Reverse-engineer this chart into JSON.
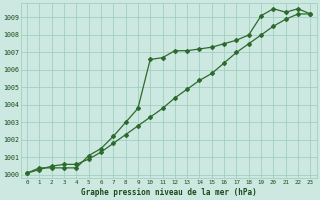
{
  "line1": [
    1000.1,
    1000.4,
    1000.4,
    1000.4,
    1000.4,
    1001.1,
    1001.5,
    1002.2,
    1003.0,
    1003.8,
    1006.6,
    1006.7,
    1007.1,
    1007.1,
    1007.2,
    1007.3,
    1007.5,
    1007.7,
    1008.0,
    1009.1,
    1009.5,
    1009.3,
    1009.5,
    1009.2
  ],
  "line2": [
    1000.1,
    1000.3,
    1000.5,
    1000.6,
    1000.6,
    1000.9,
    1001.3,
    1001.8,
    1002.3,
    1002.8,
    1003.3,
    1003.8,
    1004.4,
    1004.9,
    1005.4,
    1005.8,
    1006.4,
    1007.0,
    1007.5,
    1008.0,
    1008.5,
    1008.9,
    1009.2,
    1009.2
  ],
  "x": [
    0,
    1,
    2,
    3,
    4,
    5,
    6,
    7,
    8,
    9,
    10,
    11,
    12,
    13,
    14,
    15,
    16,
    17,
    18,
    19,
    20,
    21,
    22,
    23
  ],
  "xlim": [
    -0.5,
    23.5
  ],
  "ylim": [
    999.8,
    1009.8
  ],
  "yticks": [
    1000,
    1001,
    1002,
    1003,
    1004,
    1005,
    1006,
    1007,
    1008,
    1009
  ],
  "xlabel": "Graphe pression niveau de la mer (hPa)",
  "line_color": "#2d6a2d",
  "bg_color": "#cce8e0",
  "grid_color": "#99ccbb",
  "tick_color": "#1a4a1a",
  "marker": "D",
  "markersize": 2.0,
  "linewidth": 0.9
}
